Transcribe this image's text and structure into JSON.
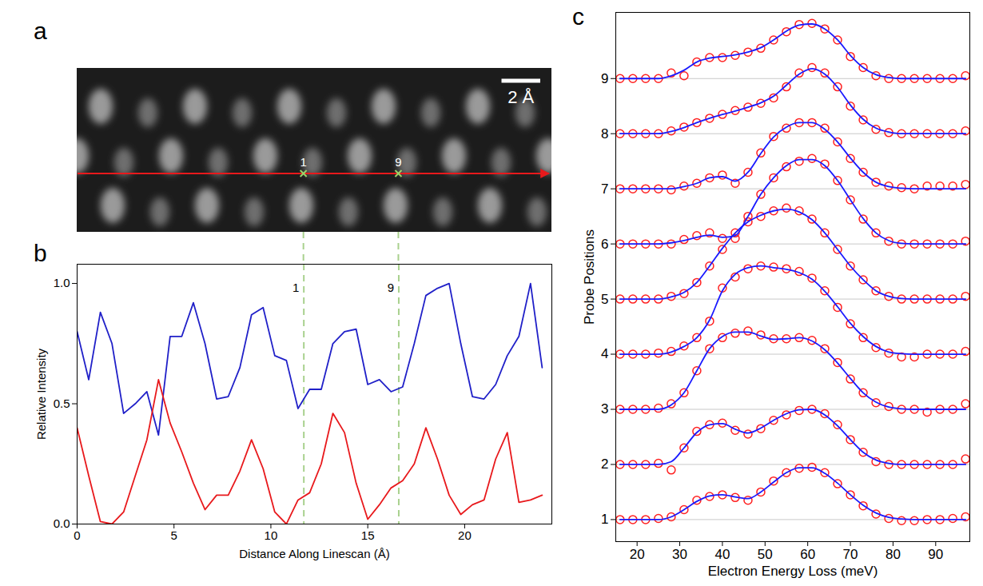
{
  "chart_data": [
    {
      "type": "image",
      "panel": "a",
      "color": "#e8191c",
      "xlim": [
        0,
        24.5
      ],
      "scale_bar": {
        "label": "2 Å",
        "length": 2
      },
      "markers": [
        {
          "label": "1",
          "x": 11.7
        },
        {
          "label": "9",
          "x": 16.6
        }
      ]
    },
    {
      "type": "line",
      "panel": "b",
      "x_label": "Distance Along Linescan (Å)",
      "y_label": "Relative Intensity",
      "x": [
        0,
        0.6,
        1.2,
        1.8,
        2.4,
        3,
        3.6,
        4.2,
        4.8,
        5.4,
        6,
        6.6,
        7.2,
        7.8,
        8.4,
        9,
        9.6,
        10.2,
        10.8,
        11.4,
        12,
        12.6,
        13.2,
        13.8,
        14.4,
        15,
        15.6,
        16.2,
        16.8,
        17.4,
        18,
        18.6,
        19.2,
        19.8,
        20.4,
        21,
        21.6,
        22.2,
        22.8,
        23.4,
        24
      ],
      "series": [
        {
          "color": "#2020c8",
          "values": [
            0.8,
            0.6,
            0.88,
            0.75,
            0.46,
            0.5,
            0.55,
            0.37,
            0.78,
            0.78,
            0.92,
            0.75,
            0.52,
            0.53,
            0.65,
            0.87,
            0.9,
            0.7,
            0.68,
            0.48,
            0.56,
            0.56,
            0.75,
            0.8,
            0.81,
            0.58,
            0.6,
            0.55,
            0.57,
            0.75,
            0.95,
            0.98,
            1.0,
            0.75,
            0.53,
            0.52,
            0.58,
            0.7,
            0.78,
            1.0,
            0.65
          ]
        },
        {
          "color": "#e8191c",
          "values": [
            0.4,
            0.2,
            0.01,
            0,
            0.05,
            0.2,
            0.35,
            0.6,
            0.42,
            0.3,
            0.17,
            0.06,
            0.12,
            0.12,
            0.22,
            0.35,
            0.23,
            0.05,
            0,
            0.1,
            0.13,
            0.25,
            0.46,
            0.38,
            0.17,
            0.02,
            0.08,
            0.15,
            0.18,
            0.25,
            0.4,
            0.27,
            0.12,
            0.04,
            0.08,
            0.1,
            0.27,
            0.38,
            0.09,
            0.1,
            0.12
          ]
        }
      ],
      "xlim": [
        0,
        24.5
      ],
      "ylim": [
        0,
        1.08
      ],
      "xticks": [
        0,
        5,
        10,
        15,
        20
      ],
      "yticks": [
        {
          "value": 0,
          "label": "0.0"
        },
        {
          "value": 0.5,
          "label": "0.5"
        },
        {
          "value": 1,
          "label": "1.0"
        }
      ],
      "annotations": [
        {
          "label": "1",
          "x": 11.7
        },
        {
          "label": "9",
          "x": 16.6
        }
      ]
    },
    {
      "type": "scatter",
      "panel": "c",
      "x_label": "Electron Energy Loss (meV)",
      "y_label": "Probe Positions",
      "x": [
        16,
        19,
        22,
        25,
        28,
        31,
        34,
        37,
        40,
        43,
        46,
        49,
        52,
        55,
        58,
        61,
        64,
        67,
        70,
        73,
        76,
        79,
        82,
        85,
        88,
        91,
        94,
        97
      ],
      "xlim": [
        15,
        98
      ],
      "ylim": [
        0.6,
        10.2
      ],
      "xticks": [
        20,
        30,
        40,
        50,
        60,
        70,
        80,
        90
      ],
      "yticks": [
        1,
        2,
        3,
        4,
        5,
        6,
        7,
        8,
        9
      ],
      "grid": true,
      "series": [
        {
          "type": "scatter",
          "marker": "circle",
          "color": "#ff2020",
          "spectra": [
            {
              "position": 1,
              "values": [
                0,
                0,
                0,
                0.02,
                0.05,
                0.18,
                0.35,
                0.42,
                0.45,
                0.4,
                0.35,
                0.5,
                0.7,
                0.85,
                0.93,
                0.95,
                0.85,
                0.65,
                0.45,
                0.25,
                0.1,
                0.02,
                -0.02,
                -0.02,
                0,
                0,
                0.02,
                0.05
              ]
            },
            {
              "position": 2,
              "values": [
                0,
                0,
                0,
                0.02,
                -0.1,
                0.3,
                0.6,
                0.72,
                0.75,
                0.62,
                0.55,
                0.65,
                0.8,
                0.9,
                0.98,
                1.0,
                0.92,
                0.72,
                0.45,
                0.22,
                0.05,
                0,
                0,
                0,
                0,
                0,
                0,
                0.1
              ]
            },
            {
              "position": 3,
              "values": [
                0,
                0,
                0,
                0.02,
                0.1,
                0.3,
                0.7,
                1.1,
                1.3,
                1.38,
                1.42,
                1.35,
                1.28,
                1.28,
                1.3,
                1.25,
                1.1,
                0.85,
                0.55,
                0.3,
                0.12,
                0.05,
                0,
                0,
                -0.05,
                0,
                0,
                0.1
              ]
            },
            {
              "position": 4,
              "values": [
                0,
                0,
                0,
                0.02,
                0.05,
                0.15,
                0.3,
                0.6,
                1.2,
                1.4,
                1.55,
                1.6,
                1.58,
                1.55,
                1.5,
                1.38,
                1.15,
                0.85,
                0.55,
                0.3,
                0.12,
                0.02,
                -0.05,
                -0.05,
                0,
                0,
                0,
                0.05
              ]
            },
            {
              "position": 5,
              "values": [
                0,
                0,
                0,
                0,
                0.05,
                0.1,
                0.3,
                0.6,
                0.9,
                1.2,
                1.4,
                1.5,
                1.6,
                1.65,
                1.6,
                1.45,
                1.2,
                0.9,
                0.6,
                0.35,
                0.15,
                0.05,
                0,
                0,
                0,
                0,
                0,
                0.05
              ]
            },
            {
              "position": 6,
              "values": [
                0,
                0,
                0,
                0,
                0,
                0.08,
                0.15,
                0.2,
                0.1,
                0.1,
                0.5,
                0.9,
                1.2,
                1.4,
                1.5,
                1.55,
                1.45,
                1.15,
                0.8,
                0.45,
                0.2,
                0.05,
                0,
                0,
                0,
                0,
                0,
                0.05
              ]
            },
            {
              "position": 7,
              "values": [
                0,
                0,
                0,
                0,
                -0.02,
                0.05,
                0.1,
                0.2,
                0.25,
                0.1,
                0.3,
                0.65,
                0.95,
                1.1,
                1.2,
                1.2,
                1.1,
                0.85,
                0.55,
                0.3,
                0.12,
                0.05,
                0.02,
                0,
                0.05,
                0.05,
                0.05,
                0.08
              ]
            },
            {
              "position": 8,
              "values": [
                0,
                0,
                0,
                0,
                0.05,
                0.12,
                0.2,
                0.28,
                0.35,
                0.42,
                0.48,
                0.55,
                0.65,
                0.85,
                1.1,
                1.2,
                1.1,
                0.85,
                0.5,
                0.25,
                0.08,
                0.02,
                0,
                0,
                0,
                0,
                0,
                0.05
              ]
            },
            {
              "position": 9,
              "values": [
                0,
                0,
                0,
                0,
                0.1,
                0.05,
                0.3,
                0.38,
                0.38,
                0.42,
                0.48,
                0.55,
                0.7,
                0.85,
                0.98,
                1.0,
                0.9,
                0.7,
                0.4,
                0.2,
                0.05,
                0,
                0,
                0,
                0,
                0,
                0,
                0.05
              ]
            }
          ]
        },
        {
          "type": "line",
          "color": "#1a1aff",
          "spectra": [
            {
              "position": 1,
              "values": [
                0,
                0,
                0,
                0,
                0.05,
                0.18,
                0.33,
                0.43,
                0.45,
                0.41,
                0.38,
                0.5,
                0.68,
                0.85,
                0.94,
                0.94,
                0.84,
                0.66,
                0.45,
                0.26,
                0.12,
                0.04,
                0.01,
                0,
                0,
                0,
                0,
                0
              ]
            },
            {
              "position": 2,
              "values": [
                0,
                0,
                0,
                0,
                0.05,
                0.3,
                0.58,
                0.72,
                0.74,
                0.64,
                0.57,
                0.66,
                0.8,
                0.92,
                0.99,
                1.0,
                0.9,
                0.7,
                0.45,
                0.22,
                0.08,
                0.02,
                0,
                0,
                0,
                0,
                0,
                0
              ]
            },
            {
              "position": 3,
              "values": [
                0,
                0,
                0,
                0,
                0.08,
                0.3,
                0.7,
                1.1,
                1.32,
                1.4,
                1.4,
                1.33,
                1.27,
                1.28,
                1.3,
                1.24,
                1.08,
                0.84,
                0.56,
                0.3,
                0.13,
                0.04,
                0.01,
                0,
                0,
                0,
                0,
                0
              ]
            },
            {
              "position": 4,
              "values": [
                0,
                0,
                0,
                0,
                0.04,
                0.14,
                0.3,
                0.62,
                1.15,
                1.45,
                1.57,
                1.6,
                1.57,
                1.54,
                1.48,
                1.36,
                1.14,
                0.86,
                0.56,
                0.32,
                0.14,
                0.04,
                0.01,
                0,
                0,
                0,
                0,
                0
              ]
            },
            {
              "position": 5,
              "values": [
                0,
                0,
                0,
                0,
                0.04,
                0.12,
                0.3,
                0.6,
                0.92,
                1.2,
                1.4,
                1.52,
                1.6,
                1.63,
                1.58,
                1.44,
                1.2,
                0.9,
                0.6,
                0.35,
                0.15,
                0.05,
                0.01,
                0,
                0,
                0,
                0,
                0
              ]
            },
            {
              "position": 6,
              "values": [
                0,
                0,
                0,
                0,
                0.02,
                0.06,
                0.12,
                0.16,
                0.12,
                0.15,
                0.5,
                0.9,
                1.2,
                1.42,
                1.53,
                1.53,
                1.42,
                1.15,
                0.8,
                0.46,
                0.2,
                0.06,
                0.01,
                0,
                0,
                0,
                0,
                0
              ]
            },
            {
              "position": 7,
              "values": [
                0,
                0,
                0,
                0,
                0,
                0.04,
                0.1,
                0.2,
                0.22,
                0.14,
                0.3,
                0.64,
                0.94,
                1.12,
                1.2,
                1.2,
                1.08,
                0.85,
                0.56,
                0.3,
                0.12,
                0.04,
                0.01,
                0,
                0,
                0,
                0,
                0
              ]
            },
            {
              "position": 8,
              "values": [
                0,
                0,
                0,
                0,
                0.04,
                0.11,
                0.2,
                0.28,
                0.35,
                0.41,
                0.48,
                0.56,
                0.68,
                0.88,
                1.08,
                1.18,
                1.08,
                0.84,
                0.52,
                0.26,
                0.1,
                0.03,
                0,
                0,
                0,
                0,
                0,
                0
              ]
            },
            {
              "position": 9,
              "values": [
                0,
                0,
                0,
                0,
                0.05,
                0.15,
                0.3,
                0.37,
                0.4,
                0.43,
                0.48,
                0.56,
                0.7,
                0.86,
                0.97,
                0.99,
                0.9,
                0.7,
                0.42,
                0.2,
                0.07,
                0.02,
                0,
                0,
                0,
                0,
                0,
                0
              ]
            }
          ]
        }
      ]
    }
  ]
}
